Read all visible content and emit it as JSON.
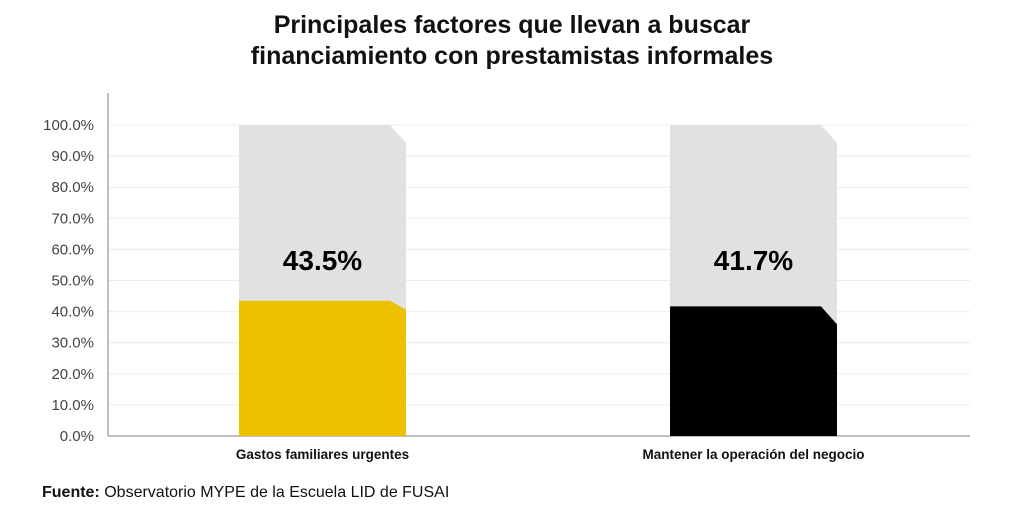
{
  "chart_data": {
    "type": "bar",
    "title": [
      "Principales factores que llevan a buscar",
      "financiamiento con prestamistas informales"
    ],
    "categories": [
      "Gastos familiares urgentes",
      "Mantener la operación del negocio"
    ],
    "values": [
      43.5,
      41.7
    ],
    "data_labels": [
      "43.5%",
      "41.7%"
    ],
    "colors": [
      "#ECC100",
      "#000000"
    ],
    "background_color": "#E1E1E1",
    "ylim": [
      0,
      100
    ],
    "yticks": [
      "0.0%",
      "10.0%",
      "20.0%",
      "30.0%",
      "40.0%",
      "50.0%",
      "60.0%",
      "70.0%",
      "80.0%",
      "90.0%",
      "100.0%"
    ],
    "grid": true,
    "xlabel": "",
    "ylabel": ""
  },
  "source": {
    "label": "Fuente:",
    "text": "Observatorio MYPE de la Escuela LID de FUSAI"
  }
}
